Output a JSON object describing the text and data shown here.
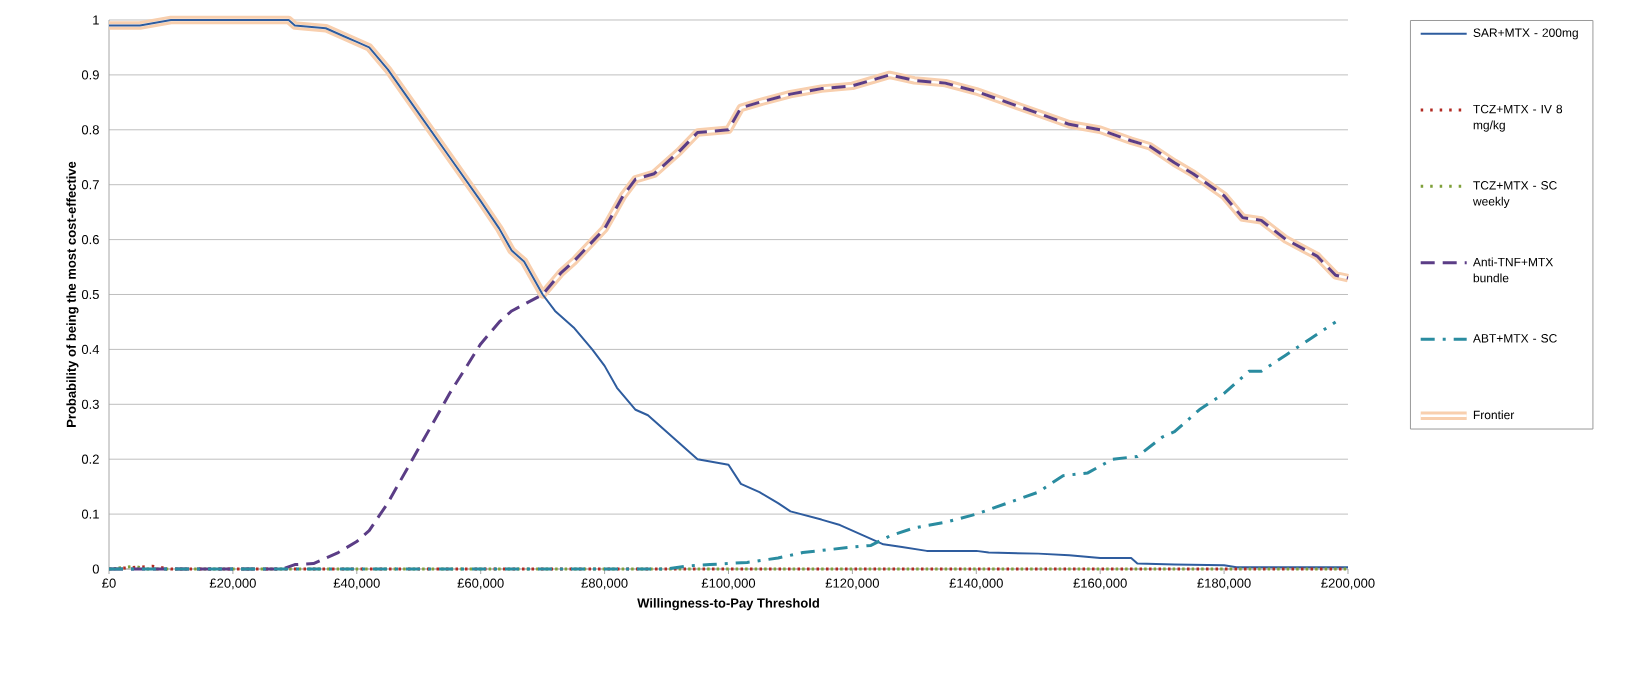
{
  "chart_data": {
    "type": "line",
    "xlabel": "Willingness-to-Pay Threshold",
    "ylabel": "Probability of being the most cost-effective",
    "xlim": [
      0,
      200000
    ],
    "xticks": [
      {
        "value": 0,
        "label": "£0"
      },
      {
        "value": 20000,
        "label": "£20,000"
      },
      {
        "value": 40000,
        "label": "£40,000"
      },
      {
        "value": 60000,
        "label": "£60,000"
      },
      {
        "value": 80000,
        "label": "£80,000"
      },
      {
        "value": 100000,
        "label": "£100,000"
      },
      {
        "value": 120000,
        "label": "£120,000"
      },
      {
        "value": 140000,
        "label": "£140,000"
      },
      {
        "value": 160000,
        "label": "£160,000"
      },
      {
        "value": 180000,
        "label": "£180,000"
      },
      {
        "value": 200000,
        "label": "£200,000"
      }
    ],
    "ylim": [
      0,
      1
    ],
    "yticks": [
      0,
      0.1,
      0.2,
      0.3,
      0.4,
      0.5,
      0.6,
      0.7,
      0.8,
      0.9,
      1
    ],
    "grid": "y",
    "legend": "right",
    "marker": "none",
    "series": [
      {
        "name": "SAR+MTX - 200mg",
        "color": "#2e5c9e",
        "line_style": "solid",
        "x": [
          0,
          5000,
          10000,
          29000,
          30000,
          35000,
          38000,
          40000,
          42000,
          45000,
          50000,
          55000,
          60000,
          63000,
          65000,
          67000,
          70000,
          72000,
          75000,
          78000,
          80000,
          82000,
          85000,
          87000,
          90000,
          92000,
          95000,
          100000,
          102000,
          105000,
          108000,
          110000,
          115000,
          118000,
          122000,
          125000,
          128000,
          132000,
          140000,
          142000,
          150000,
          155000,
          160000,
          165000,
          166000,
          172000,
          180000,
          182000,
          200000
        ],
        "values": [
          0.99,
          0.99,
          1,
          1,
          0.99,
          0.985,
          0.97,
          0.96,
          0.95,
          0.91,
          0.83,
          0.75,
          0.67,
          0.62,
          0.58,
          0.56,
          0.5,
          0.47,
          0.44,
          0.4,
          0.37,
          0.33,
          0.29,
          0.28,
          0.25,
          0.23,
          0.2,
          0.19,
          0.155,
          0.14,
          0.12,
          0.105,
          0.09,
          0.08,
          0.06,
          0.045,
          0.04,
          0.033,
          0.033,
          0.03,
          0.028,
          0.025,
          0.02,
          0.02,
          0.01,
          0.008,
          0.007,
          0.003,
          0.003
        ]
      },
      {
        "name": "TCZ+MTX - IV 8 mg/kg",
        "color": "#b22a22",
        "line_style": "dotted",
        "x": [
          0,
          7000,
          10000,
          200000
        ],
        "values": [
          0,
          0.005,
          0,
          0
        ]
      },
      {
        "name": "TCZ+MTX - SC weekly",
        "color": "#7fa03a",
        "line_style": "dotted",
        "x": [
          0,
          4000,
          6000,
          200000
        ],
        "values": [
          0,
          0.005,
          0,
          0
        ]
      },
      {
        "name": "Anti-TNF+MTX bundle",
        "color": "#5b3d86",
        "line_style": "dashed",
        "x": [
          0,
          28000,
          30000,
          33000,
          37000,
          40000,
          42000,
          45000,
          50000,
          55000,
          60000,
          63000,
          65000,
          70000,
          73000,
          75000,
          80000,
          83000,
          85000,
          88000,
          92000,
          95000,
          100000,
          102000,
          105000,
          110000,
          115000,
          120000,
          123000,
          126000,
          130000,
          135000,
          140000,
          145000,
          150000,
          155000,
          160000,
          165000,
          168000,
          172000,
          175000,
          180000,
          183000,
          186000,
          190000,
          195000,
          198000,
          200000
        ],
        "values": [
          0,
          0,
          0.008,
          0.01,
          0.03,
          0.05,
          0.07,
          0.12,
          0.22,
          0.32,
          0.41,
          0.45,
          0.47,
          0.5,
          0.54,
          0.56,
          0.62,
          0.68,
          0.71,
          0.72,
          0.76,
          0.795,
          0.8,
          0.84,
          0.85,
          0.865,
          0.875,
          0.88,
          0.89,
          0.9,
          0.89,
          0.885,
          0.87,
          0.85,
          0.83,
          0.81,
          0.8,
          0.78,
          0.77,
          0.74,
          0.72,
          0.68,
          0.64,
          0.635,
          0.6,
          0.57,
          0.535,
          0.53
        ]
      },
      {
        "name": "ABT+MTX - SC",
        "color": "#2a8ca0",
        "line_style": "dashdot",
        "x": [
          0,
          90000,
          93000,
          97000,
          100000,
          103000,
          108000,
          112000,
          116000,
          120000,
          123000,
          126000,
          130000,
          135000,
          140000,
          145000,
          150000,
          154000,
          158000,
          162000,
          166000,
          170000,
          172000,
          176000,
          180000,
          184000,
          186000,
          190000,
          194000,
          198000
        ],
        "values": [
          0,
          0,
          0.005,
          0.008,
          0.01,
          0.012,
          0.02,
          0.03,
          0.035,
          0.04,
          0.043,
          0.06,
          0.075,
          0.085,
          0.1,
          0.12,
          0.14,
          0.17,
          0.175,
          0.2,
          0.205,
          0.24,
          0.25,
          0.29,
          0.32,
          0.36,
          0.36,
          0.39,
          0.42,
          0.45
        ]
      },
      {
        "name": "Frontier",
        "color": "#f8cfae",
        "line_style": "solid",
        "x": [
          0,
          5000,
          10000,
          29000,
          30000,
          35000,
          38000,
          40000,
          42000,
          45000,
          50000,
          55000,
          60000,
          63000,
          65000,
          67000,
          70000,
          73000,
          75000,
          80000,
          83000,
          85000,
          88000,
          92000,
          95000,
          100000,
          102000,
          105000,
          110000,
          115000,
          120000,
          123000,
          126000,
          130000,
          135000,
          140000,
          145000,
          150000,
          155000,
          160000,
          165000,
          168000,
          172000,
          175000,
          180000,
          183000,
          186000,
          190000,
          195000,
          198000,
          200000
        ],
        "values": [
          0.99,
          0.99,
          1,
          1,
          0.99,
          0.985,
          0.97,
          0.96,
          0.95,
          0.91,
          0.83,
          0.75,
          0.67,
          0.62,
          0.58,
          0.56,
          0.5,
          0.54,
          0.56,
          0.62,
          0.68,
          0.71,
          0.72,
          0.76,
          0.795,
          0.8,
          0.84,
          0.85,
          0.865,
          0.875,
          0.88,
          0.89,
          0.9,
          0.89,
          0.885,
          0.87,
          0.85,
          0.83,
          0.81,
          0.8,
          0.78,
          0.77,
          0.74,
          0.72,
          0.68,
          0.64,
          0.635,
          0.6,
          0.57,
          0.535,
          0.53
        ]
      }
    ]
  }
}
